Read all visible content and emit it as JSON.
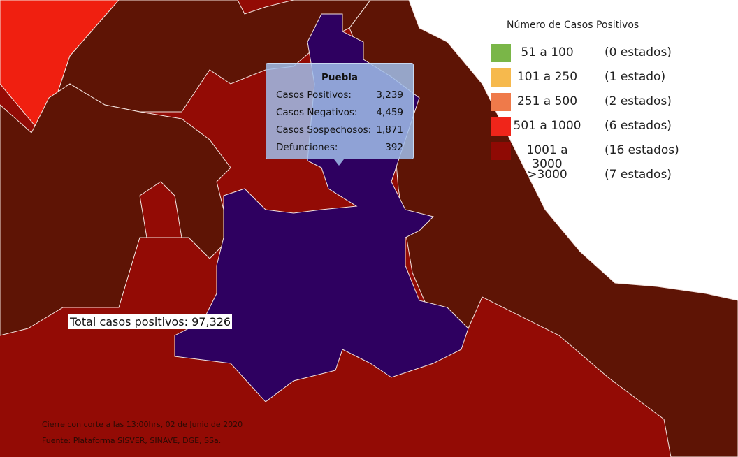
{
  "tooltip": {
    "title": "Puebla",
    "rows": [
      [
        "Casos Positivos:",
        "3,239"
      ],
      [
        "Casos Negativos:",
        "4,459"
      ],
      [
        "Casos Sospechosos:",
        "1,871"
      ],
      [
        "Defunciones:",
        "392"
      ]
    ]
  },
  "legend": {
    "title": "Número de Casos Positivos",
    "items": [
      {
        "range": "51 a 100",
        "count": "(0 estados)",
        "color": "#7ab648"
      },
      {
        "range": "101 a 250",
        "count": "(1 estado)",
        "color": "#f6b94d"
      },
      {
        "range": "251 a 500",
        "count": "(2 estados)",
        "color": "#ef7a4a"
      },
      {
        "range": "501 a 1000",
        "count": "(6 estados)",
        "color": "#f0251a"
      },
      {
        "range": "1001 a 3000",
        "count": "(16 estados)",
        "color": "#8f0a04"
      },
      {
        "range": ">3000",
        "count": "(7 estados)"
      }
    ]
  },
  "total_label": "Total casos positivos: 97,326",
  "footer": [
    "Cierre con corte a las 13:00hrs, 02 de Junio de 2020",
    "Fuente: Plataforma SISVER, SINAVE, DGE, SSa."
  ]
}
